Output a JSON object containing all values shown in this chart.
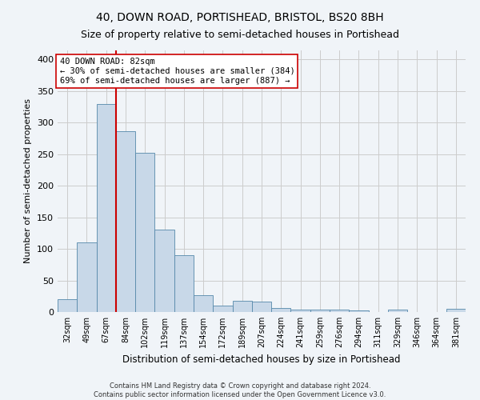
{
  "title": "40, DOWN ROAD, PORTISHEAD, BRISTOL, BS20 8BH",
  "subtitle": "Size of property relative to semi-detached houses in Portishead",
  "xlabel": "Distribution of semi-detached houses by size in Portishead",
  "ylabel": "Number of semi-detached properties",
  "footer_line1": "Contains HM Land Registry data © Crown copyright and database right 2024.",
  "footer_line2": "Contains public sector information licensed under the Open Government Licence v3.0.",
  "categories": [
    "32sqm",
    "49sqm",
    "67sqm",
    "84sqm",
    "102sqm",
    "119sqm",
    "137sqm",
    "154sqm",
    "172sqm",
    "189sqm",
    "207sqm",
    "224sqm",
    "241sqm",
    "259sqm",
    "276sqm",
    "294sqm",
    "311sqm",
    "329sqm",
    "346sqm",
    "364sqm",
    "381sqm"
  ],
  "values": [
    20,
    110,
    330,
    287,
    252,
    130,
    90,
    27,
    10,
    18,
    17,
    6,
    4,
    4,
    4,
    3,
    0,
    4,
    0,
    0,
    5
  ],
  "bar_color": "#c8d8e8",
  "bar_edge_color": "#5588aa",
  "marker_bin_index": 3,
  "marker_color": "#cc0000",
  "annotation_title": "40 DOWN ROAD: 82sqm",
  "annotation_line1": "← 30% of semi-detached houses are smaller (384)",
  "annotation_line2": "69% of semi-detached houses are larger (887) →",
  "ylim": [
    0,
    415
  ],
  "yticks": [
    0,
    50,
    100,
    150,
    200,
    250,
    300,
    350,
    400
  ],
  "grid_color": "#cccccc",
  "background_color": "#f0f4f8",
  "title_fontsize": 10,
  "subtitle_fontsize": 9
}
